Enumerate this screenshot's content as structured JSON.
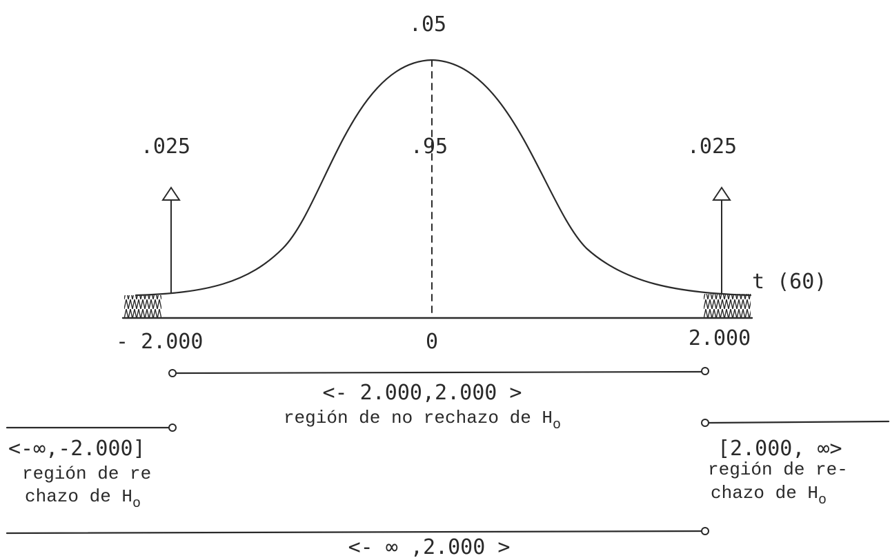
{
  "distribution_label": "t (60)",
  "areas": {
    "significance": ".05",
    "left_tail": ".025",
    "center": ".95",
    "right_tail": ".025"
  },
  "critical_values": {
    "left": "- 2.000",
    "center": "0",
    "right": "2.000"
  },
  "intervals": {
    "non_rejection": {
      "interval": "<- 2.000,2.000 >",
      "label_prefix": "región de no rechazo de H",
      "label_subscript": "o"
    },
    "left_rejection": {
      "interval": "<-∞,-2.000]",
      "label_line1": "región de re",
      "label_line2": "chazo de H",
      "label_subscript": "o"
    },
    "right_rejection": {
      "interval": "[2.000, ∞>",
      "label_line1": "región de re-",
      "label_line2": "chazo de H",
      "label_subscript": "o"
    },
    "bottom": {
      "interval": "<- ∞ ,2.000 >"
    }
  },
  "chart_data": {
    "type": "area",
    "x": [
      -2.0,
      0,
      2.0
    ],
    "critical_values": [
      -2.0,
      2.0
    ],
    "tail_areas": [
      0.025,
      0.025
    ],
    "center_area": 0.95,
    "alpha": 0.05,
    "xlabel": "t (60)"
  }
}
